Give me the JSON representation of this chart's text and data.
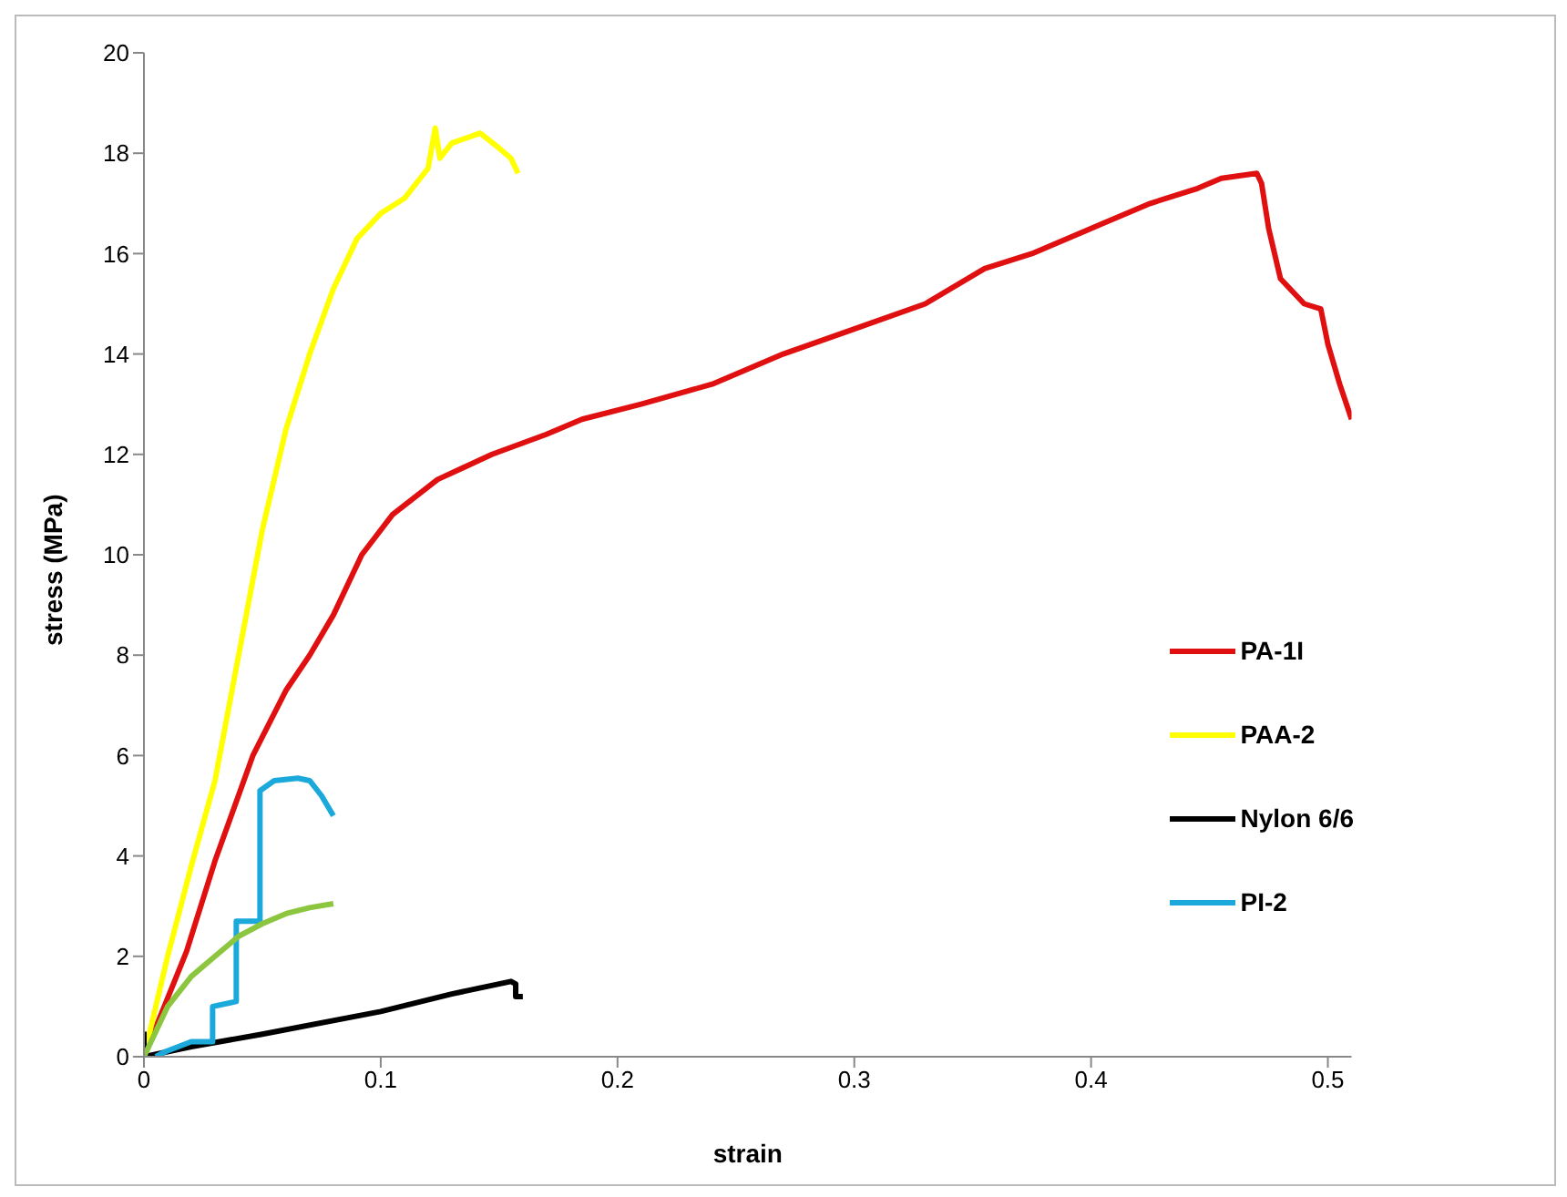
{
  "chart_data": {
    "type": "line",
    "xlabel": "strain",
    "ylabel": "stress (MPa)",
    "xlim": [
      0,
      0.51
    ],
    "xticks": [
      0,
      0.1,
      0.2,
      0.3,
      0.4,
      0.5
    ],
    "ylim": [
      0,
      20
    ],
    "yticks": [
      0,
      2,
      4,
      6,
      8,
      10,
      12,
      14,
      16,
      18,
      20
    ],
    "grid": false,
    "legend": "right",
    "marker": "none",
    "line_style": "solid",
    "series": [
      {
        "name": "PA-1I",
        "color": "#e01010",
        "x": [
          0,
          0.018,
          0.03,
          0.046,
          0.06,
          0.07,
          0.08,
          0.092,
          0.105,
          0.124,
          0.147,
          0.17,
          0.185,
          0.21,
          0.24,
          0.27,
          0.3,
          0.33,
          0.355,
          0.375,
          0.405,
          0.425,
          0.445,
          0.455,
          0.47,
          0.472,
          0.475,
          0.48,
          0.49,
          0.497,
          0.5,
          0.505,
          0.51
        ],
        "values": [
          0,
          2.1,
          3.9,
          6.0,
          7.3,
          8.0,
          8.8,
          10.0,
          10.8,
          11.5,
          12.0,
          12.4,
          12.7,
          13.0,
          13.4,
          14.0,
          14.5,
          15.0,
          15.7,
          16.0,
          16.6,
          17.0,
          17.3,
          17.5,
          17.6,
          17.4,
          16.5,
          15.5,
          15.0,
          14.9,
          14.2,
          13.4,
          12.7
        ]
      },
      {
        "name": "PAA-2",
        "color": "#ffff00",
        "x": [
          0,
          0.01,
          0.02,
          0.03,
          0.04,
          0.05,
          0.06,
          0.07,
          0.08,
          0.09,
          0.1,
          0.11,
          0.12,
          0.123,
          0.125,
          0.13,
          0.142,
          0.15,
          0.155,
          0.158
        ],
        "values": [
          0,
          2.0,
          3.8,
          5.5,
          8.0,
          10.5,
          12.5,
          14.0,
          15.3,
          16.3,
          16.8,
          17.1,
          17.7,
          18.5,
          17.9,
          18.2,
          18.4,
          18.1,
          17.9,
          17.6
        ]
      },
      {
        "name": "Nylon 6/6",
        "color": "#000000",
        "x": [
          0,
          0,
          0.02,
          0.05,
          0.1,
          0.13,
          0.155,
          0.157,
          0.157,
          0.16
        ],
        "values": [
          0.5,
          0,
          0.2,
          0.45,
          0.9,
          1.25,
          1.5,
          1.45,
          1.2,
          1.2
        ]
      },
      {
        "name": "PI-2",
        "color": "#1ba9dc",
        "x": [
          0.005,
          0.009,
          0.02,
          0.029,
          0.029,
          0.039,
          0.039,
          0.049,
          0.049,
          0.055,
          0.065,
          0.07,
          0.075,
          0.08
        ],
        "values": [
          0,
          0.1,
          0.3,
          0.3,
          1.0,
          1.1,
          2.7,
          2.7,
          5.3,
          5.5,
          5.55,
          5.5,
          5.2,
          4.8
        ]
      },
      {
        "color": "#8cc63f",
        "x": [
          0,
          0.01,
          0.02,
          0.03,
          0.04,
          0.05,
          0.06,
          0.07,
          0.08
        ],
        "values": [
          0,
          1.0,
          1.6,
          2.0,
          2.4,
          2.65,
          2.85,
          2.97,
          3.05
        ]
      }
    ]
  }
}
